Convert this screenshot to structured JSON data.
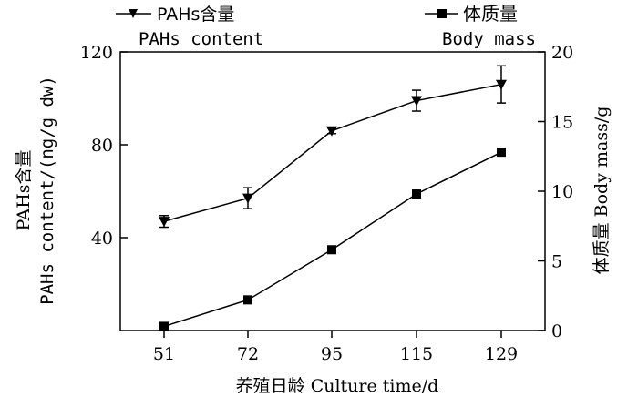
{
  "chart_data": {
    "type": "line",
    "categories": [
      "51",
      "72",
      "95",
      "115",
      "129"
    ],
    "xlabel": "养殖日龄 Culture time/d",
    "left_axis": {
      "label_line1": "PAHs含量",
      "label_line2": "PAHs content/(ng/g dw)",
      "ylim": [
        0,
        120
      ],
      "ticks": [
        40,
        80,
        120
      ]
    },
    "right_axis": {
      "label": "体质量 Body mass/g",
      "ylim": [
        0,
        20
      ],
      "ticks": [
        0,
        5,
        10,
        15,
        20
      ]
    },
    "series": [
      {
        "name_cn": "PAHs含量",
        "name_en": "PAHs content",
        "axis": "left",
        "marker": "triangle-down",
        "values": [
          47,
          57,
          86,
          99,
          106
        ],
        "errors": [
          2.5,
          4.5,
          1.2,
          4.5,
          8
        ]
      },
      {
        "name_cn": "体质量",
        "name_en": "Body mass",
        "axis": "right",
        "marker": "square",
        "values": [
          0.3,
          2.2,
          5.8,
          9.8,
          12.8
        ],
        "errors": [
          0,
          0,
          0,
          0,
          0
        ]
      }
    ],
    "legend_position": "top",
    "grid": false,
    "color": "#000000"
  }
}
